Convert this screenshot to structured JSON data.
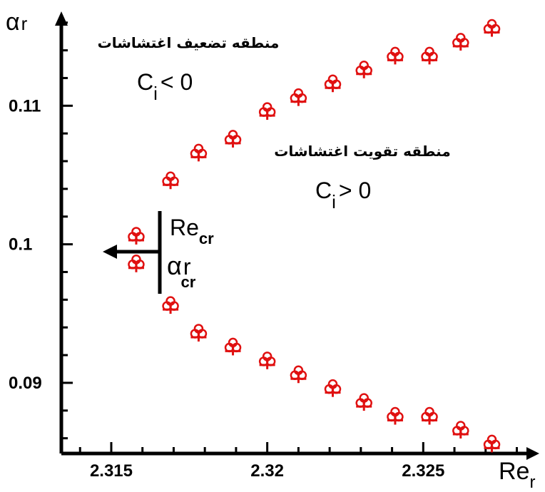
{
  "chart_data": {
    "type": "scatter",
    "xlabel_main": "Re",
    "xlabel_sub": "r",
    "ylabel_main": "α",
    "ylabel_sub": "r",
    "xlim": [
      2.3134,
      2.3284
    ],
    "ylim": [
      0.0849,
      0.1165
    ],
    "x_ticks": [
      2.315,
      2.32,
      2.325
    ],
    "x_tick_labels": [
      "2.315",
      "2.32",
      "2.325"
    ],
    "y_ticks": [
      0.09,
      0.1,
      0.11
    ],
    "y_tick_labels": [
      "0.09",
      "0.1",
      "0.11"
    ],
    "grid": false,
    "marker_color": "#e01010",
    "marker_symbol": "♧",
    "series": [
      {
        "x": [
          2.3158,
          2.3169,
          2.3178,
          2.3189,
          2.32,
          2.321,
          2.3221,
          2.3231,
          2.3241,
          2.3252,
          2.3262,
          2.3272
        ],
        "y": [
          0.1006,
          0.1046,
          0.1066,
          0.1076,
          0.1096,
          0.1106,
          0.1116,
          0.1126,
          0.1136,
          0.1136,
          0.1146,
          0.1156
        ]
      },
      {
        "x": [
          2.3158,
          2.3169,
          2.3178,
          2.3189,
          2.32,
          2.321,
          2.3221,
          2.3231,
          2.3241,
          2.3252,
          2.3262,
          2.3272
        ],
        "y": [
          0.0986,
          0.0956,
          0.0936,
          0.0926,
          0.0916,
          0.0906,
          0.0896,
          0.0886,
          0.0876,
          0.0876,
          0.0866,
          0.0856
        ]
      }
    ],
    "annotations": {
      "damping_region": "منطقه تضعیف اغتشاشات",
      "damping_condition_main": "C",
      "damping_condition_sub": "i",
      "damping_condition_rel": "< 0",
      "amplifying_region": "منطقه تقویت اغتشاشات",
      "amplifying_condition_main": "C",
      "amplifying_condition_sub": "i",
      "amplifying_condition_rel": "> 0",
      "critical_re_main": "Re",
      "critical_re_sub": "cr",
      "critical_alpha_main": "α",
      "critical_alpha_sub1": "r",
      "critical_alpha_sub2": "cr"
    }
  }
}
